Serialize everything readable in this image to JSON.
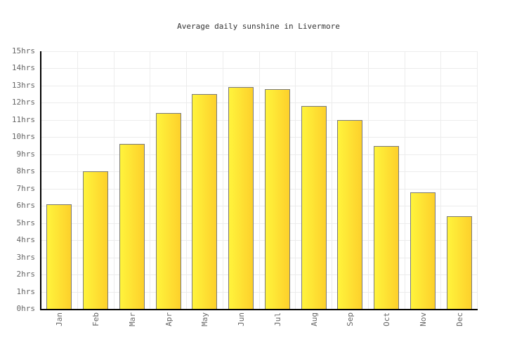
{
  "chart_data": {
    "type": "bar",
    "title": "Average daily sunshine in Livermore",
    "categories": [
      "Jan",
      "Feb",
      "Mar",
      "Apr",
      "May",
      "Jun",
      "Jul",
      "Aug",
      "Sep",
      "Oct",
      "Nov",
      "Dec"
    ],
    "values": [
      6.1,
      8.0,
      9.6,
      11.4,
      12.5,
      12.9,
      12.8,
      11.8,
      11.0,
      9.5,
      6.8,
      5.4
    ],
    "xlabel": "",
    "ylabel": "",
    "ylim": [
      0,
      15
    ],
    "ytick_labels": [
      "0hrs",
      "1hrs",
      "2hrs",
      "3hrs",
      "4hrs",
      "5hrs",
      "6hrs",
      "7hrs",
      "8hrs",
      "9hrs",
      "10hrs",
      "11hrs",
      "12hrs",
      "13hrs",
      "14hrs",
      "15hrs"
    ],
    "grid": true,
    "legend": false,
    "bar_gradient": [
      "#fff43c",
      "#fdd02b"
    ],
    "bar_border_color": "#7a7a7a",
    "axis_color": "#000000",
    "grid_color": "#ececec",
    "tick_label_color": "#666666",
    "title_color": "#333333",
    "background_color": "#ffffff"
  }
}
